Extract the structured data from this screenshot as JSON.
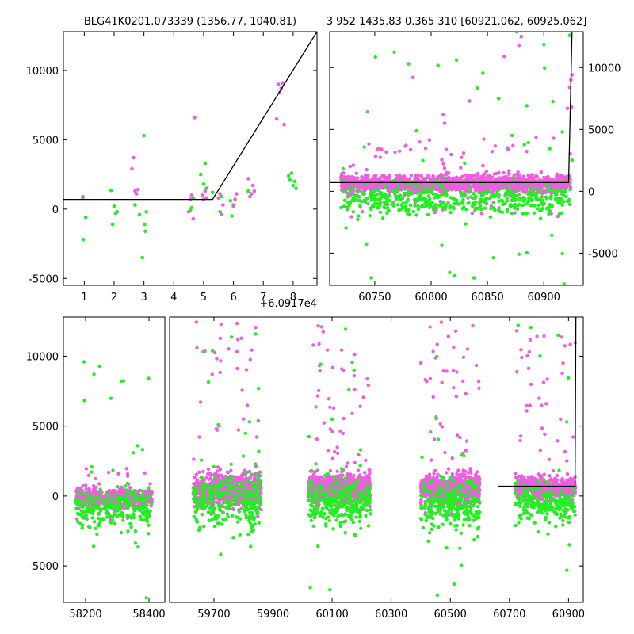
{
  "chart_data": [
    {
      "id": "top-left",
      "type": "scatter",
      "title": "BLG41K0201.073339 (1356.77, 1040.81)",
      "xlim": [
        0.3,
        8.8
      ],
      "ylim": [
        -5500,
        12800
      ],
      "xticks": [
        1,
        2,
        3,
        4,
        5,
        6,
        7,
        8
      ],
      "yticks": [
        -5000,
        0,
        5000,
        10000
      ],
      "x_offset_label": "+6.0917e4",
      "series": [
        {
          "color": "#22ee22",
          "points": [
            [
              0.95,
              900
            ],
            [
              0.97,
              -2200
            ],
            [
              1.05,
              -600
            ],
            [
              1.9,
              1350
            ],
            [
              1.95,
              -1100
            ],
            [
              2.0,
              200
            ],
            [
              2.05,
              -300
            ],
            [
              2.1,
              -200
            ],
            [
              2.7,
              300
            ],
            [
              2.85,
              -400
            ],
            [
              2.95,
              -3500
            ],
            [
              3.0,
              5300
            ],
            [
              3.02,
              -1100
            ],
            [
              3.05,
              -1600
            ],
            [
              3.08,
              -200
            ],
            [
              4.55,
              -100
            ],
            [
              4.6,
              100
            ],
            [
              4.65,
              800
            ],
            [
              4.9,
              2500
            ],
            [
              5.0,
              1800
            ],
            [
              5.05,
              3300
            ],
            [
              5.1,
              1500
            ],
            [
              5.3,
              1200
            ],
            [
              5.55,
              -200
            ],
            [
              5.6,
              900
            ],
            [
              5.9,
              600
            ],
            [
              5.95,
              -500
            ],
            [
              6.0,
              200
            ],
            [
              6.5,
              1300
            ],
            [
              7.85,
              2400
            ],
            [
              7.9,
              2100
            ],
            [
              7.95,
              2600
            ],
            [
              8.0,
              1700
            ],
            [
              8.05,
              2000
            ],
            [
              8.1,
              1500
            ]
          ]
        },
        {
          "color": "#ee5ee0",
          "points": [
            [
              0.95,
              800
            ],
            [
              2.6,
              2900
            ],
            [
              2.65,
              3700
            ],
            [
              2.7,
              1300
            ],
            [
              2.75,
              1100
            ],
            [
              2.8,
              1400
            ],
            [
              4.5,
              -200
            ],
            [
              4.55,
              700
            ],
            [
              4.6,
              1000
            ],
            [
              4.65,
              -700
            ],
            [
              4.7,
              6600
            ],
            [
              4.95,
              1000
            ],
            [
              5.0,
              700
            ],
            [
              5.05,
              1300
            ],
            [
              5.1,
              800
            ],
            [
              5.5,
              800
            ],
            [
              5.55,
              1100
            ],
            [
              5.6,
              -400
            ],
            [
              5.65,
              300
            ],
            [
              6.0,
              300
            ],
            [
              6.05,
              700
            ],
            [
              6.1,
              1100
            ],
            [
              6.5,
              2200
            ],
            [
              6.55,
              900
            ],
            [
              6.6,
              1100
            ],
            [
              6.65,
              1700
            ],
            [
              6.7,
              1300
            ],
            [
              7.45,
              6500
            ],
            [
              7.5,
              9000
            ],
            [
              7.55,
              8400
            ],
            [
              7.6,
              8700
            ],
            [
              7.65,
              9100
            ],
            [
              7.7,
              6100
            ]
          ]
        }
      ],
      "model": [
        [
          0.3,
          700
        ],
        [
          5.3,
          700
        ],
        [
          8.8,
          12800
        ]
      ]
    },
    {
      "id": "top-right",
      "type": "scatter",
      "title": "3 952 1435.83 0.365 310 [60921.062, 60925.062]",
      "xlim": [
        60710,
        60935
      ],
      "ylim": [
        -7600,
        12900
      ],
      "xticks": [
        60750,
        60800,
        60850,
        60900
      ],
      "yticks": [
        -5000,
        0,
        5000,
        10000
      ],
      "model": [
        [
          60710,
          700
        ],
        [
          60922,
          700
        ],
        [
          60925,
          12900
        ]
      ],
      "bands": [
        {
          "x_range": [
            60720,
            60924
          ],
          "center": 600,
          "spread": 700,
          "n": 1600,
          "color": "#ee5ee0",
          "outlier_y": [
            -2200,
            4500
          ]
        },
        {
          "x_range": [
            60720,
            60924
          ],
          "center": -600,
          "spread": 1200,
          "n": 500,
          "color": "#22ee22",
          "outlier_y": [
            -7500,
            12000
          ]
        }
      ],
      "series": [
        {
          "color": "#ee5ee0",
          "points": [
            [
              60784,
              9200
            ],
            [
              60811,
              6200
            ],
            [
              60812,
              5500
            ],
            [
              60834,
              7300
            ],
            [
              60865,
              10900
            ],
            [
              60878,
              11800
            ],
            [
              60880,
              12500
            ],
            [
              60921,
              6700
            ],
            [
              60923,
              8400
            ],
            [
              60924,
              9000
            ],
            [
              60925,
              9400
            ],
            [
              60924.5,
              6800
            ]
          ]
        },
        {
          "color": "#22ee22",
          "points": [
            [
              60780,
              10300
            ],
            [
              60747,
              -7000
            ],
            [
              60838,
              -7000
            ],
            [
              60860,
              7500
            ],
            [
              60876,
              12900
            ],
            [
              60918,
              -7500
            ],
            [
              60923,
              12600
            ],
            [
              60925,
              2500
            ]
          ]
        }
      ]
    },
    {
      "id": "bottom",
      "type": "scatter",
      "xlim": [
        58130,
        60950
      ],
      "ylim": [
        -7600,
        12800
      ],
      "xticks": [
        58200,
        58400,
        59700,
        59900,
        60100,
        60300,
        60500,
        60700,
        60900
      ],
      "yticks": [
        -5000,
        0,
        5000,
        10000
      ],
      "segments": [
        {
          "range": [
            58130,
            58450
          ],
          "px": [
            80,
            208
          ]
        },
        {
          "range": [
            59550,
            60950
          ],
          "px": [
            214,
            736
          ]
        }
      ],
      "model": [
        [
          60660,
          700
        ],
        [
          60922,
          700
        ],
        [
          60925,
          12800
        ]
      ],
      "bands": [
        {
          "x_range": [
            58170,
            58410
          ],
          "center": -100,
          "spread": 550,
          "n": 700,
          "color": "#ee5ee0",
          "outlier_y": [
            -1800,
            2000
          ]
        },
        {
          "x_range": [
            58170,
            58410
          ],
          "center": -900,
          "spread": 1400,
          "n": 260,
          "color": "#22ee22",
          "outlier_y": [
            -7600,
            10000
          ]
        },
        {
          "x_range": [
            59630,
            59860
          ],
          "center": 400,
          "spread": 1100,
          "n": 900,
          "color": "#ee5ee0",
          "outlier_y": [
            -1500,
            12500
          ]
        },
        {
          "x_range": [
            59630,
            59860
          ],
          "center": -400,
          "spread": 2000,
          "n": 300,
          "color": "#22ee22",
          "outlier_y": [
            -7500,
            12500
          ]
        },
        {
          "x_range": [
            60020,
            60230
          ],
          "center": 600,
          "spread": 1000,
          "n": 900,
          "color": "#ee5ee0",
          "outlier_y": [
            -1500,
            12300
          ]
        },
        {
          "x_range": [
            60020,
            60230
          ],
          "center": -500,
          "spread": 1800,
          "n": 300,
          "color": "#22ee22",
          "outlier_y": [
            -7300,
            12500
          ]
        },
        {
          "x_range": [
            60400,
            60600
          ],
          "center": 500,
          "spread": 1000,
          "n": 800,
          "color": "#ee5ee0",
          "outlier_y": [
            -1500,
            12500
          ]
        },
        {
          "x_range": [
            60400,
            60600
          ],
          "center": -500,
          "spread": 1700,
          "n": 260,
          "color": "#22ee22",
          "outlier_y": [
            -7500,
            11000
          ]
        },
        {
          "x_range": [
            60720,
            60924
          ],
          "center": 600,
          "spread": 700,
          "n": 700,
          "color": "#ee5ee0",
          "outlier_y": [
            -1200,
            12000
          ]
        },
        {
          "x_range": [
            60720,
            60924
          ],
          "center": -600,
          "spread": 1300,
          "n": 240,
          "color": "#22ee22",
          "outlier_y": [
            -7500,
            12500
          ]
        }
      ],
      "series": []
    }
  ]
}
